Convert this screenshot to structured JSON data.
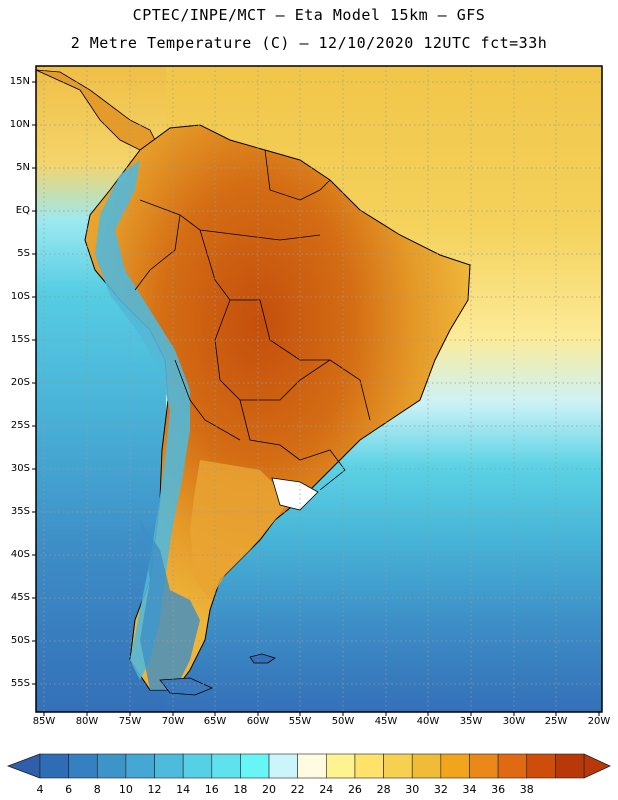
{
  "title": {
    "line1": "CPTEC/INPE/MCT –  Eta Model 15km – GFS",
    "line2": "2 Metre Temperature (C) – 12/10/2020 12UTC fct=33h"
  },
  "lat_labels": [
    "15N",
    "10N",
    "5N",
    "EQ",
    "5S",
    "10S",
    "15S",
    "20S",
    "25S",
    "30S",
    "35S",
    "40S",
    "45S",
    "50S",
    "55S"
  ],
  "lon_labels": [
    "85W",
    "80W",
    "75W",
    "70W",
    "65W",
    "60W",
    "55W",
    "50W",
    "45W",
    "40W",
    "35W",
    "30W",
    "25W",
    "20W"
  ],
  "colorbar": {
    "values": [
      "4",
      "6",
      "8",
      "10",
      "12",
      "14",
      "16",
      "18",
      "20",
      "22",
      "24",
      "26",
      "28",
      "30",
      "32",
      "34",
      "36",
      "38"
    ],
    "colors": [
      "#2e6cb5",
      "#3580c0",
      "#3d94c9",
      "#45a8d4",
      "#4dbcdc",
      "#56d0e4",
      "#5fe2ee",
      "#67f5f5",
      "#ccf5fb",
      "#fffbe0",
      "#fff290",
      "#ffe26a",
      "#f6d050",
      "#f0bc38",
      "#f0a51c",
      "#ea881a",
      "#e06a12",
      "#cf4d0a",
      "#b8380a"
    ],
    "left_arrow_color": "#2f5faa",
    "right_arrow_color": "#b8380a"
  },
  "map_colors": {
    "ocean_south": "#3a78bd",
    "ocean_mid": "#48b4d8",
    "ocean_cool": "#5ad4e6",
    "ocean_warm_north": "#f3cf59",
    "ocean_pale": "#fff2a6",
    "land_hot": "#c9560d",
    "land_warm": "#e08f22",
    "land_mild": "#edb13a",
    "andes": "#4fb2d6",
    "coast_line": "#000000",
    "grid_line": "#888888"
  }
}
